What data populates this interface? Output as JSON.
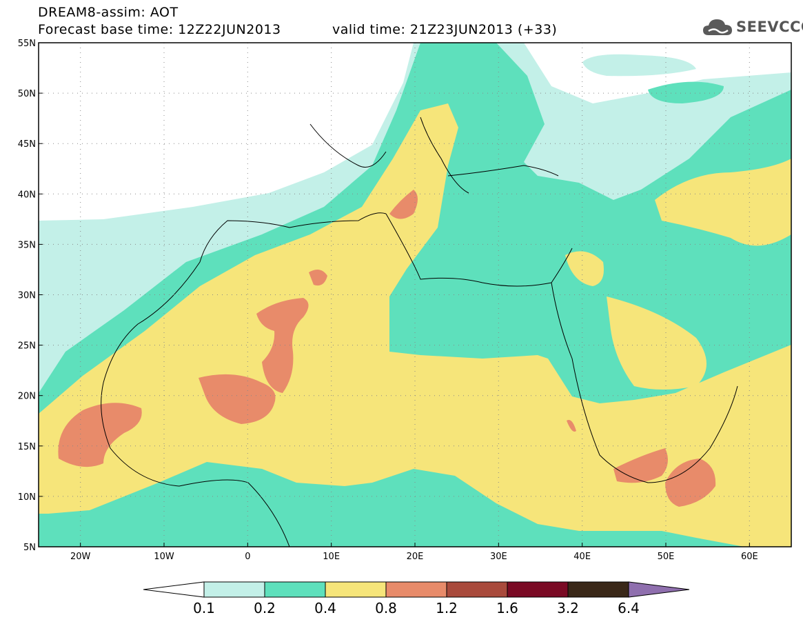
{
  "title": {
    "line1": "DREAM8-assim: AOT",
    "line2_left": "Forecast base time: 12Z22JUN2013",
    "line2_right": "valid time: 21Z23JUN2013 (+33)"
  },
  "brand": {
    "name": "SEEVCCC",
    "icon": "cloud-icon"
  },
  "map": {
    "lon_range": [
      -25,
      65
    ],
    "lat_range": [
      5,
      55
    ],
    "lon_ticks": [
      "20W",
      "10W",
      "0",
      "10E",
      "20E",
      "30E",
      "40E",
      "50E",
      "60E"
    ],
    "lat_ticks": [
      "55N",
      "50N",
      "45N",
      "40N",
      "35N",
      "30N",
      "25N",
      "20N",
      "15N",
      "10N",
      "5N"
    ],
    "grid": "dotted"
  },
  "colorbar": {
    "labels": [
      "0.1",
      "0.2",
      "0.4",
      "0.8",
      "1.2",
      "1.6",
      "3.2",
      "6.4"
    ],
    "colors": [
      "#ffffff",
      "#c3f0e8",
      "#5ee0bc",
      "#f6e57a",
      "#e88b6a",
      "#a94a3c",
      "#7a0a24",
      "#3a2818",
      "#8f6fae"
    ]
  }
}
